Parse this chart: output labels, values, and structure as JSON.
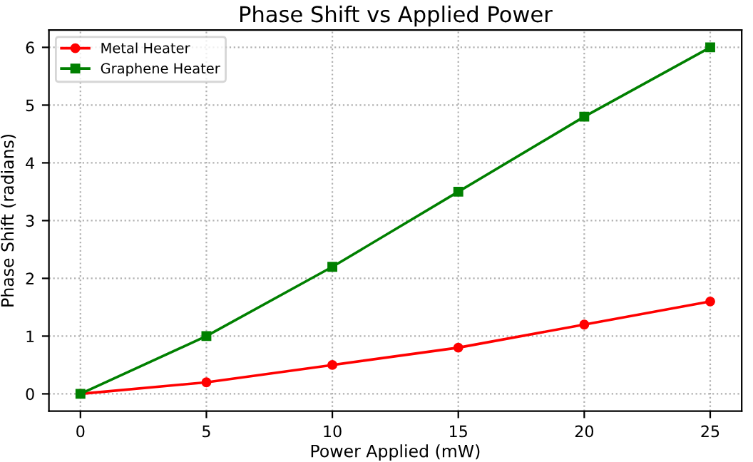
{
  "chart_data": {
    "type": "line",
    "title": "Phase Shift vs Applied Power",
    "xlabel": "Power Applied (mW)",
    "ylabel": "Phase Shift (radians)",
    "x": [
      0,
      5,
      10,
      15,
      20,
      25
    ],
    "series": [
      {
        "name": "Metal Heater",
        "color": "#ff0000",
        "values": [
          0,
          0.2,
          0.5,
          0.8,
          1.2,
          1.6
        ],
        "marker": "circle"
      },
      {
        "name": "Graphene Heater",
        "color": "#008000",
        "values": [
          0,
          1.0,
          2.2,
          3.5,
          4.8,
          6.0
        ],
        "marker": "square"
      }
    ],
    "xlim": [
      -1.25,
      26.25
    ],
    "ylim": [
      -0.3,
      6.3
    ],
    "xticks": [
      0,
      5,
      10,
      15,
      20,
      25
    ],
    "yticks": [
      0,
      1,
      2,
      3,
      4,
      5,
      6
    ],
    "grid": true,
    "legend": "top left",
    "line_style": "solid"
  }
}
